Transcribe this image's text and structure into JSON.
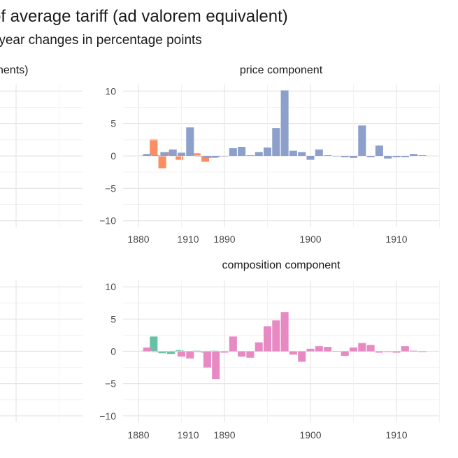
{
  "title": "of average tariff (ad valorem equivalent)",
  "subtitle": "-year changes in percentage points",
  "colors": {
    "total": "#fc8d62",
    "price": "#8da0cb",
    "volume": "#66c2a5",
    "composition": "#e78ac3",
    "grid_major": "#e6e6e6",
    "grid_minor": "#f2f2f2"
  },
  "chart_data": [
    {
      "type": "bar",
      "id": "top-left",
      "title": "nents)",
      "color_key": "total",
      "x": [
        1905,
        1906,
        1907,
        1908,
        1909,
        1910,
        1911,
        1912,
        1913
      ],
      "values": [
        0.1,
        2.6,
        -1.9,
        0.6,
        -0.6,
        0.0,
        0.4,
        -0.9,
        -0.3
      ],
      "ylim": [
        -11,
        11
      ],
      "xlim": [
        1880,
        1915
      ],
      "x_ticks": [
        1910
      ],
      "x_tick_labels": [
        "1910"
      ]
    },
    {
      "type": "bar",
      "id": "price",
      "title": "price component",
      "color_key": "price",
      "x": [
        1881,
        1882,
        1883,
        1884,
        1885,
        1886,
        1887,
        1888,
        1889,
        1890,
        1891,
        1892,
        1893,
        1894,
        1895,
        1896,
        1897,
        1898,
        1899,
        1900,
        1901,
        1902,
        1903,
        1904,
        1905,
        1906,
        1907,
        1908,
        1909,
        1910,
        1911,
        1912,
        1913
      ],
      "values": [
        0.3,
        0.1,
        0.6,
        1.0,
        0.5,
        4.4,
        0.0,
        -0.3,
        -0.2,
        0.0,
        1.2,
        1.4,
        0.1,
        0.6,
        1.3,
        4.3,
        10.1,
        0.8,
        0.6,
        -0.6,
        1.0,
        0.1,
        0.0,
        -0.2,
        -0.3,
        4.7,
        -0.2,
        1.6,
        -0.4,
        -0.2,
        -0.2,
        0.3,
        0.1
      ],
      "ylim": [
        -11,
        11
      ],
      "xlim": [
        1878,
        1915
      ],
      "y_ticks": [
        -10,
        -5,
        0,
        5,
        10
      ],
      "y_tick_labels": [
        "−10",
        "−5",
        "0",
        "5",
        "10"
      ],
      "x_ticks": [
        1880,
        1890,
        1900,
        1910
      ],
      "x_tick_labels": [
        "1880",
        "1890",
        "1900",
        "1910"
      ]
    },
    {
      "type": "bar",
      "id": "bottom-left",
      "title": "",
      "color_key": "volume",
      "x": [
        1905,
        1906,
        1907,
        1908,
        1909,
        1910,
        1911,
        1912,
        1913
      ],
      "values": [
        0.1,
        2.3,
        -0.3,
        -0.4,
        0.2,
        0.0,
        0.1,
        -0.2,
        0.1
      ],
      "ylim": [
        -11,
        11
      ],
      "xlim": [
        1880,
        1915
      ],
      "x_ticks": [
        1910
      ],
      "x_tick_labels": [
        "1910"
      ]
    },
    {
      "type": "bar",
      "id": "composition",
      "title": "composition component",
      "color_key": "composition",
      "x": [
        1881,
        1882,
        1883,
        1884,
        1885,
        1886,
        1887,
        1888,
        1889,
        1890,
        1891,
        1892,
        1893,
        1894,
        1895,
        1896,
        1897,
        1898,
        1899,
        1900,
        1901,
        1902,
        1903,
        1904,
        1905,
        1906,
        1907,
        1908,
        1909,
        1910,
        1911,
        1912,
        1913
      ],
      "values": [
        0.6,
        -0.1,
        0.0,
        0.0,
        -0.8,
        -1.1,
        -0.1,
        -2.5,
        -4.3,
        -0.2,
        2.3,
        -0.8,
        -1.0,
        1.4,
        3.9,
        4.8,
        6.1,
        -0.5,
        -1.6,
        0.4,
        0.8,
        0.7,
        0.0,
        -0.7,
        0.6,
        1.3,
        1.0,
        -0.2,
        -0.1,
        -0.2,
        0.8,
        0.1,
        -0.1
      ],
      "ylim": [
        -11,
        11
      ],
      "xlim": [
        1878,
        1915
      ],
      "y_ticks": [
        -10,
        -5,
        0,
        5,
        10
      ],
      "y_tick_labels": [
        "−10",
        "−5",
        "0",
        "5",
        "10"
      ],
      "x_ticks": [
        1880,
        1890,
        1900,
        1910
      ],
      "x_tick_labels": [
        "1880",
        "1890",
        "1900",
        "1910"
      ]
    }
  ]
}
